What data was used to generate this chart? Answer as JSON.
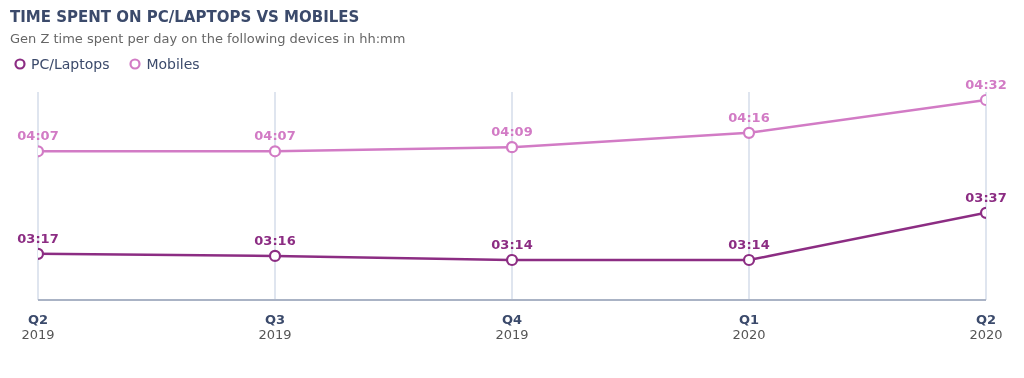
{
  "chart_data": {
    "type": "line",
    "title": "TIME SPENT ON PC/LAPTOPS VS MOBILES",
    "subtitle": "Gen Z time spent per day on the following devices in hh:mm",
    "categories": [
      "Q2\n2019",
      "Q3\n2019",
      "Q4\n2019",
      "Q1\n2020",
      "Q2\n2020"
    ],
    "series": [
      {
        "name": "PC/Laptops",
        "color": "#8c2d83",
        "values": [
          197,
          196,
          194,
          194,
          217
        ],
        "value_labels": [
          "03:17",
          "03:16",
          "03:14",
          "03:14",
          "03:37"
        ]
      },
      {
        "name": "Mobiles",
        "color": "#d27bc5",
        "values": [
          247,
          247,
          249,
          256,
          272
        ],
        "value_labels": [
          "04:07",
          "04:07",
          "04:09",
          "04:16",
          "04:32"
        ]
      }
    ],
    "legend": "top left",
    "grid": "x",
    "marker": "circle",
    "line_style": "solid"
  }
}
